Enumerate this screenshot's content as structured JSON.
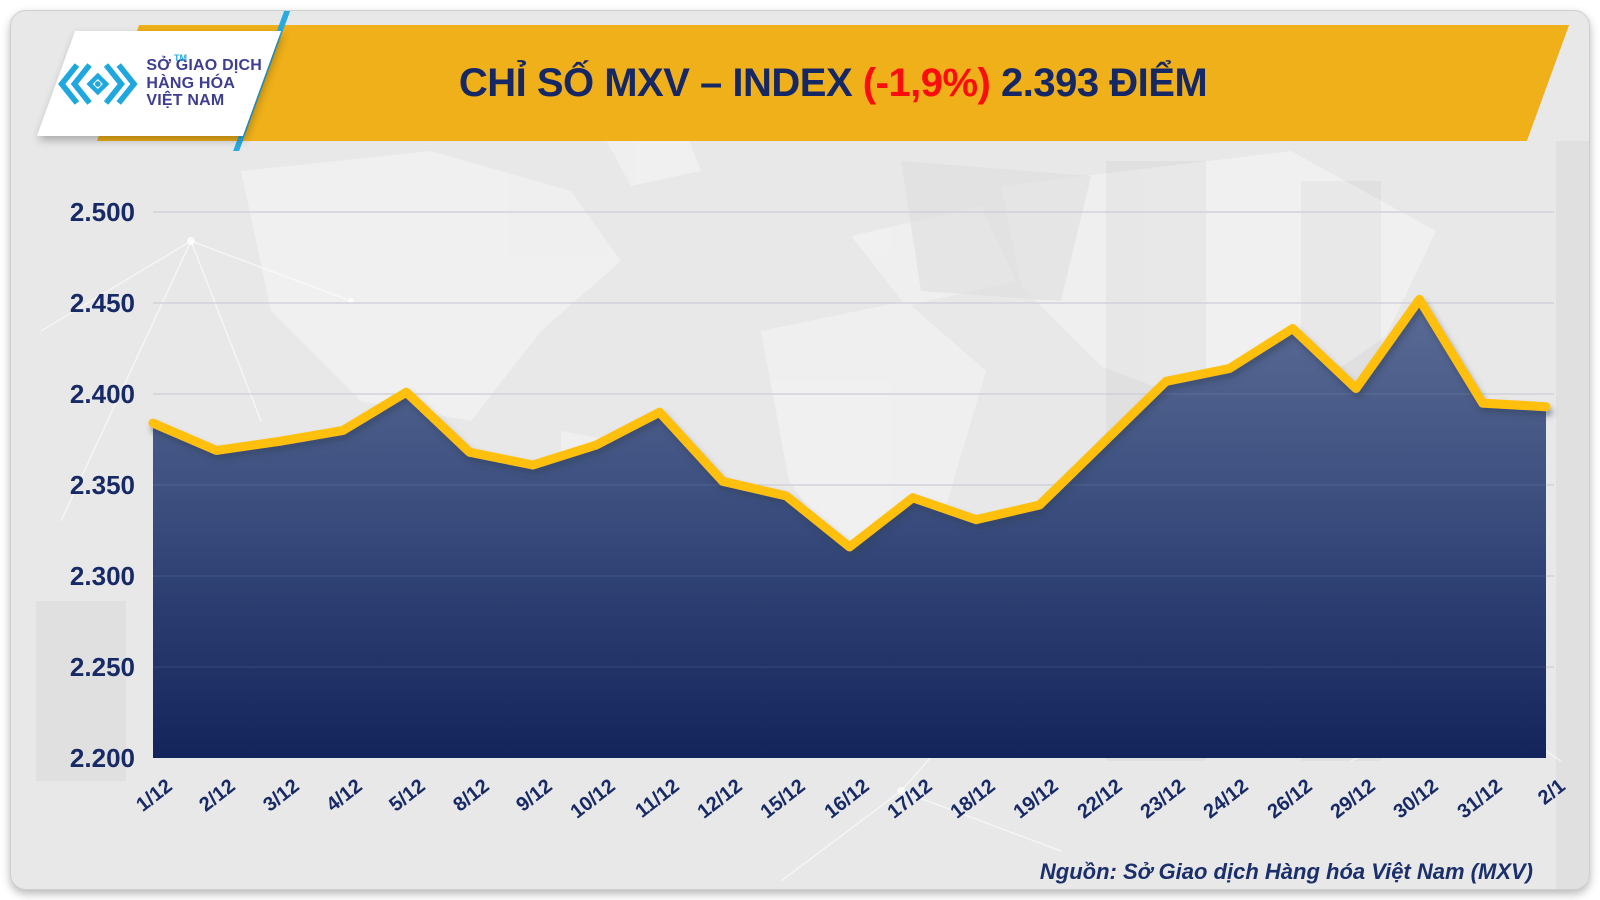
{
  "banner": {
    "title_prefix": "CHỈ SỐ MXV – INDEX ",
    "title_change": "(-1,9%)",
    "title_suffix": " 2.393 ĐIỂM",
    "background": "#efb019",
    "text_color": "#162765",
    "change_color": "#fb0d0d"
  },
  "logo": {
    "line1": "SỞ GIAO DỊCH",
    "line2": "HÀNG HÓA",
    "line3": "VIỆT NAM",
    "trademark": "TM",
    "icon": "mxv-logo-icon",
    "icon_color": "#1fa8e0",
    "text_color": "#3e3e90"
  },
  "footer": {
    "source": "Nguồn: Sở Giao dịch Hàng hóa Việt Nam (MXV)"
  },
  "chart_data": {
    "type": "area",
    "title": "CHỈ SỐ MXV – INDEX (-1,9%) 2.393 ĐIỂM",
    "latest_value": "2.393",
    "change_percent": "-1,9%",
    "categories": [
      "1/12",
      "2/12",
      "3/12",
      "4/12",
      "5/12",
      "8/12",
      "9/12",
      "10/12",
      "11/12",
      "12/12",
      "15/12",
      "16/12",
      "17/12",
      "18/12",
      "19/12",
      "22/12",
      "23/12",
      "24/12",
      "26/12",
      "29/12",
      "30/12",
      "31/12",
      "2/1"
    ],
    "values": [
      2384,
      2369,
      2374,
      2380,
      2401,
      2368,
      2361,
      2372,
      2390,
      2352,
      2344,
      2316,
      2343,
      2331,
      2339,
      2373,
      2407,
      2414,
      2436,
      2403,
      2452,
      2395,
      2393
    ],
    "ylim": [
      2200,
      2500
    ],
    "yticks": [
      {
        "v": 2500,
        "label": "2.500"
      },
      {
        "v": 2450,
        "label": "2.450"
      },
      {
        "v": 2400,
        "label": "2.400"
      },
      {
        "v": 2350,
        "label": "2.350"
      },
      {
        "v": 2300,
        "label": "2.300"
      },
      {
        "v": 2250,
        "label": "2.250"
      },
      {
        "v": 2200,
        "label": "2.200"
      }
    ],
    "grid": "horizontal",
    "legend": "none",
    "line_color": "#fec00f",
    "area_top_color": "#5c6c96",
    "area_mid_color": "#3b4e7e",
    "area_bottom_color": "#13245b",
    "axis_label_color": "#172a66"
  }
}
